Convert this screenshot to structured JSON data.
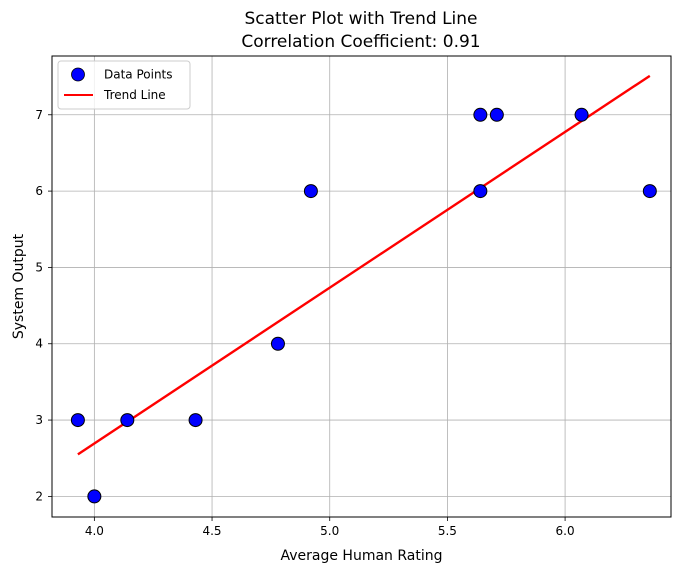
{
  "chart_data": {
    "type": "scatter",
    "title": "Scatter Plot with Trend Line",
    "subtitle": "Correlation Coefficient: 0.91",
    "xlabel": "Average Human Rating",
    "ylabel": "System Output",
    "xlim": [
      3.82,
      6.45
    ],
    "ylim": [
      1.73,
      7.77
    ],
    "xticks": [
      4.0,
      4.5,
      5.0,
      5.5,
      6.0
    ],
    "xtick_labels": [
      "4.0",
      "4.5",
      "5.0",
      "5.5",
      "6.0"
    ],
    "yticks": [
      2,
      3,
      4,
      5,
      6,
      7
    ],
    "ytick_labels": [
      "2",
      "3",
      "4",
      "5",
      "6",
      "7"
    ],
    "grid": true,
    "legend_position": "top-left",
    "series": [
      {
        "name": "Data Points",
        "kind": "scatter",
        "color": "#0000ff",
        "edge_color": "#000000",
        "x": [
          3.93,
          4.0,
          4.14,
          4.43,
          4.78,
          4.92,
          5.64,
          5.64,
          5.71,
          6.07,
          6.36
        ],
        "y": [
          3,
          2,
          3,
          3,
          4,
          6,
          7,
          6,
          7,
          7,
          6
        ]
      },
      {
        "name": "Trend Line",
        "kind": "line",
        "color": "#ff0000",
        "x": [
          3.93,
          6.36
        ],
        "y": [
          2.55,
          7.51
        ]
      }
    ]
  }
}
